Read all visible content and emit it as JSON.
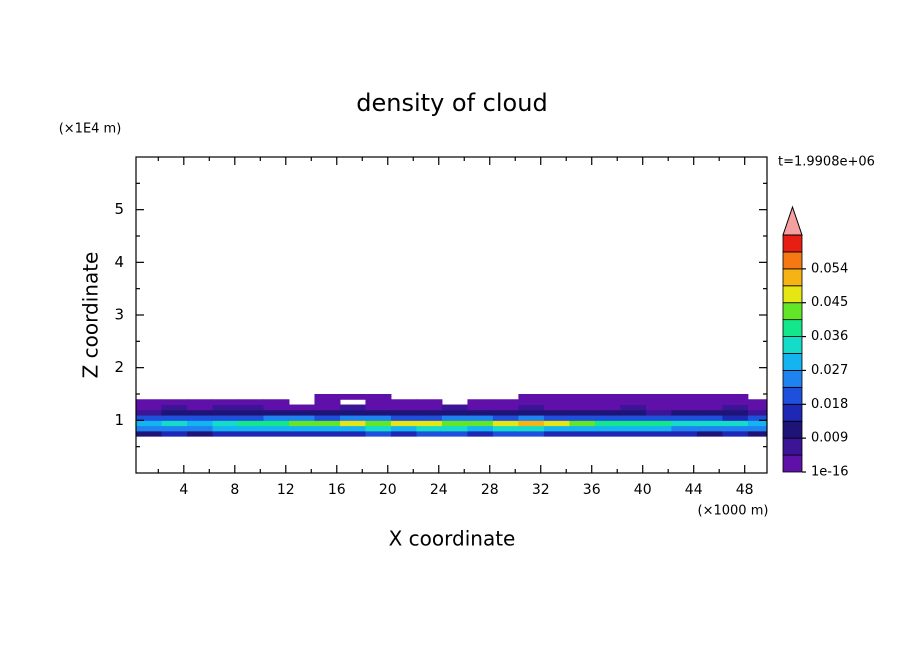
{
  "chart_data": {
    "type": "contour",
    "title": "density of cloud",
    "x_label": "X coordinate",
    "y_label": "Z coordinate",
    "x_unit": "(×1000 m)",
    "y_unit": "(×1E4 m)",
    "time_label": "t=1.9908e+06",
    "xlim": [
      0.25,
      49.75
    ],
    "ylim": [
      0,
      6
    ],
    "xticks": [
      4,
      8,
      12,
      16,
      20,
      24,
      28,
      32,
      36,
      40,
      44,
      48
    ],
    "yticks": [
      1,
      2,
      3,
      4,
      5
    ],
    "xminorticks": [
      2,
      6,
      10,
      14,
      18,
      22,
      26,
      30,
      34,
      38,
      42,
      46
    ],
    "yminorticks": [
      0.5,
      1.5,
      2.5,
      3.5,
      4.5,
      5.5
    ],
    "x": [
      1.25,
      3.25,
      5.25,
      7.25,
      9.25,
      11.25,
      13.25,
      15.25,
      17.25,
      19.25,
      21.25,
      23.25,
      25.25,
      27.25,
      29.25,
      31.25,
      33.25,
      35.25,
      37.25,
      39.25,
      41.25,
      43.25,
      45.25,
      47.25,
      49.25
    ],
    "y": [
      0.75,
      0.85,
      0.95,
      1.05,
      1.15,
      1.25,
      1.35,
      1.45
    ],
    "z": [
      [
        0.012,
        0.014,
        0.013,
        0.015,
        0.014,
        0.016,
        0.015,
        0.017,
        0.016,
        0.018,
        0.017,
        0.019,
        0.018,
        0.017,
        0.019,
        0.018,
        0.016,
        0.017,
        0.015,
        0.016,
        0.014,
        0.015,
        0.013,
        0.014,
        0.012
      ],
      [
        0.024,
        0.026,
        0.025,
        0.028,
        0.027,
        0.03,
        0.029,
        0.031,
        0.03,
        0.032,
        0.031,
        0.033,
        0.032,
        0.031,
        0.034,
        0.032,
        0.03,
        0.031,
        0.029,
        0.028,
        0.027,
        0.026,
        0.025,
        0.026,
        0.024
      ],
      [
        0.03,
        0.032,
        0.031,
        0.034,
        0.036,
        0.04,
        0.042,
        0.044,
        0.046,
        0.043,
        0.045,
        0.047,
        0.044,
        0.042,
        0.048,
        0.052,
        0.046,
        0.043,
        0.04,
        0.038,
        0.036,
        0.034,
        0.033,
        0.032,
        0.03
      ],
      [
        0.018,
        0.019,
        0.02,
        0.021,
        0.022,
        0.023,
        0.024,
        0.022,
        0.023,
        0.024,
        0.022,
        0.021,
        0.023,
        0.024,
        0.022,
        0.023,
        0.021,
        0.022,
        0.02,
        0.019,
        0.018,
        0.019,
        0.018,
        0.017,
        0.018
      ],
      [
        0.008,
        0.009,
        0.01,
        0.009,
        0.011,
        0.012,
        0.011,
        0.01,
        0.012,
        0.011,
        0.01,
        0.011,
        0.012,
        0.01,
        0.011,
        0.012,
        0.01,
        0.009,
        0.01,
        0.009,
        0.008,
        0.009,
        0.01,
        0.009,
        0.008
      ],
      [
        0.004,
        0.005,
        0.004,
        0.006,
        0.005,
        0.004,
        0.003,
        0.004,
        0.005,
        0.004,
        0.003,
        0.004,
        0.005,
        0.004,
        0.003,
        0.005,
        0.004,
        0.003,
        0.004,
        0.005,
        0.004,
        0.003,
        0.004,
        0.005,
        0.004
      ],
      [
        0.002,
        0.003,
        0.002,
        0.003,
        0.002,
        0.001,
        null,
        0.001,
        null,
        0.001,
        0.002,
        0.001,
        null,
        0.001,
        0.002,
        0.003,
        0.002,
        0.001,
        0.002,
        0.003,
        0.002,
        0.002,
        0.001,
        0.002,
        0.002
      ],
      [
        null,
        null,
        null,
        null,
        null,
        null,
        null,
        0.001,
        0.001,
        0.001,
        null,
        null,
        null,
        null,
        null,
        0.001,
        0.001,
        0.001,
        0.001,
        0.001,
        0.001,
        0.001,
        0.001,
        0.001,
        null
      ]
    ],
    "colorbar": {
      "levels": [
        1e-16,
        0.0045,
        0.009,
        0.0135,
        0.018,
        0.0225,
        0.027,
        0.0315,
        0.036,
        0.0405,
        0.045,
        0.0495,
        0.054,
        0.0585,
        0.063
      ],
      "colors": [
        "#5f10a8",
        "#3c1496",
        "#1e1478",
        "#1e28b4",
        "#1e50dc",
        "#1e82f0",
        "#14b4f0",
        "#14dcc8",
        "#14e68c",
        "#64e628",
        "#e6e614",
        "#f5b414",
        "#f57814",
        "#e61e14"
      ],
      "extend_color": "#f4a0a0",
      "ticks": [
        1e-16,
        0.009,
        0.018,
        0.027,
        0.036,
        0.045,
        0.054
      ]
    }
  }
}
